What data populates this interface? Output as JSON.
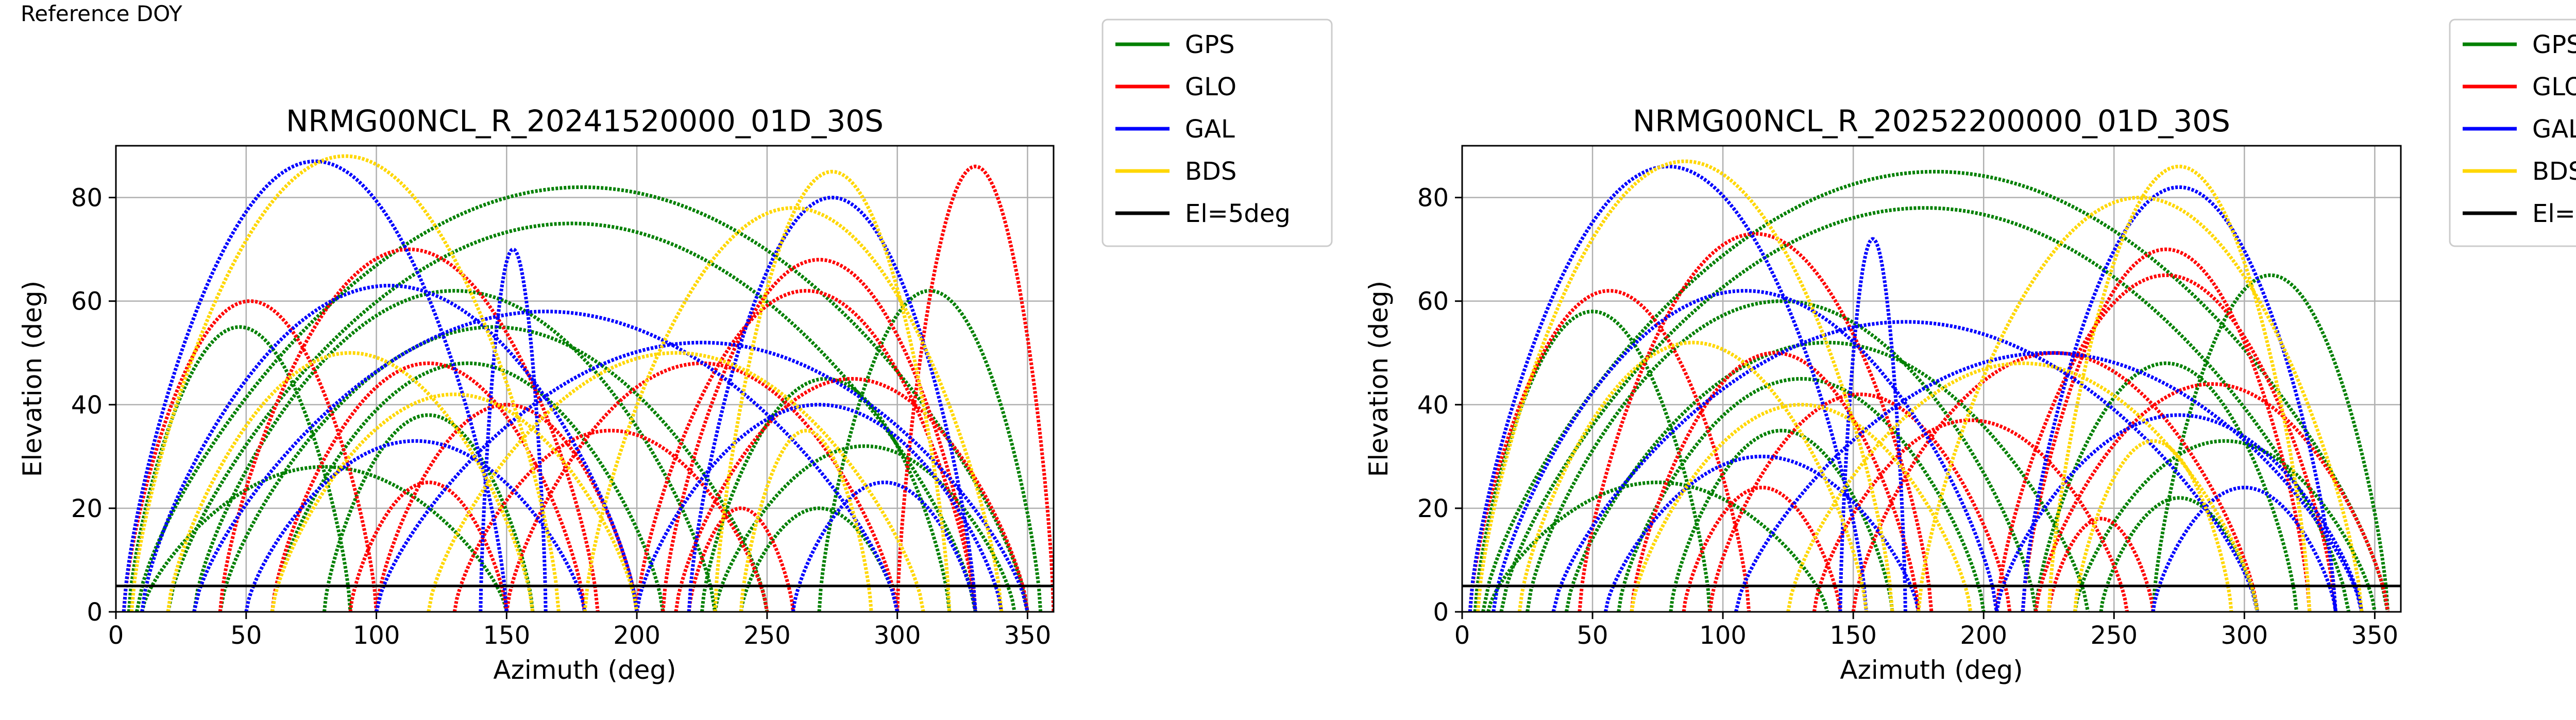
{
  "page_label": "Reference DOY",
  "colors": {
    "GPS": "#008000",
    "GLO": "#ff0000",
    "GAL": "#0000ff",
    "BDS": "#ffd700",
    "El=5deg": "#000000",
    "grid": "#b0b0b0"
  },
  "legend_entries": [
    "GPS",
    "GLO",
    "GAL",
    "BDS",
    "El=5deg"
  ],
  "chart_data": [
    {
      "type": "scatter",
      "title": "NRMG00NCL_R_20241520000_01D_30S",
      "xlabel": "Azimuth (deg)",
      "ylabel": "Elevation (deg)",
      "xlim": [
        0,
        360
      ],
      "ylim": [
        0,
        90
      ],
      "xticks": [
        0,
        50,
        100,
        150,
        200,
        250,
        300,
        350
      ],
      "yticks": [
        0,
        20,
        40,
        60,
        80
      ],
      "grid": true,
      "legend_placement": "outside right, top",
      "reference_line": {
        "name": "El=5deg",
        "y": 5
      },
      "series": [
        {
          "name": "GPS",
          "arcs": [
            [
              8,
              350,
              82
            ],
            [
              20,
              330,
              75
            ],
            [
              30,
              230,
              62
            ],
            [
              40,
              250,
              55
            ],
            [
              60,
              210,
              48
            ],
            [
              80,
              160,
              38
            ],
            [
              225,
              320,
              45
            ],
            [
              230,
              345,
              32
            ],
            [
              10,
              150,
              28
            ],
            [
              240,
              300,
              20
            ],
            [
              5,
              90,
              55
            ],
            [
              270,
              355,
              62
            ]
          ]
        },
        {
          "name": "GLO",
          "arcs": [
            [
              3,
              100,
              60
            ],
            [
              40,
              185,
              70
            ],
            [
              60,
              180,
              48
            ],
            [
              100,
              200,
              40
            ],
            [
              130,
              250,
              35
            ],
            [
              150,
              300,
              48
            ],
            [
              200,
              330,
              62
            ],
            [
              210,
              330,
              68
            ],
            [
              215,
              350,
              45
            ],
            [
              90,
              150,
              25
            ],
            [
              220,
              260,
              20
            ],
            [
              300,
              360,
              86
            ]
          ]
        },
        {
          "name": "GAL",
          "arcs": [
            [
              3,
              150,
              87
            ],
            [
              10,
              200,
              63
            ],
            [
              30,
              300,
              58
            ],
            [
              100,
              350,
              52
            ],
            [
              200,
              340,
              40
            ],
            [
              220,
              330,
              80
            ],
            [
              50,
              180,
              33
            ],
            [
              260,
              330,
              25
            ],
            [
              140,
              165,
              70
            ]
          ]
        },
        {
          "name": "BDS",
          "arcs": [
            [
              6,
              170,
              88
            ],
            [
              20,
              160,
              50
            ],
            [
              60,
              200,
              42
            ],
            [
              180,
              340,
              78
            ],
            [
              230,
              320,
              85
            ],
            [
              120,
              310,
              50
            ],
            [
              240,
              290,
              35
            ]
          ]
        }
      ]
    },
    {
      "type": "scatter",
      "title": "NRMG00NCL_R_20252200000_01D_30S",
      "xlabel": "Azimuth (deg)",
      "ylabel": "Elevation (deg)",
      "xlim": [
        0,
        360
      ],
      "ylim": [
        0,
        90
      ],
      "xticks": [
        0,
        50,
        100,
        150,
        200,
        250,
        300,
        350
      ],
      "yticks": [
        0,
        20,
        40,
        60,
        80
      ],
      "grid": true,
      "legend_placement": "outside right, top",
      "reference_line": {
        "name": "El=5deg",
        "y": 5
      },
      "series": [
        {
          "name": "GPS",
          "arcs": [
            [
              8,
              355,
              85
            ],
            [
              15,
              340,
              78
            ],
            [
              25,
              220,
              60
            ],
            [
              40,
              240,
              52
            ],
            [
              60,
              200,
              45
            ],
            [
              80,
              165,
              35
            ],
            [
              220,
              320,
              48
            ],
            [
              235,
              350,
              33
            ],
            [
              10,
              140,
              25
            ],
            [
              245,
              305,
              22
            ],
            [
              5,
              95,
              58
            ],
            [
              265,
              355,
              65
            ]
          ]
        },
        {
          "name": "GLO",
          "arcs": [
            [
              3,
              110,
              62
            ],
            [
              45,
              180,
              73
            ],
            [
              65,
              175,
              50
            ],
            [
              95,
              210,
              42
            ],
            [
              135,
              255,
              37
            ],
            [
              150,
              305,
              50
            ],
            [
              205,
              335,
              65
            ],
            [
              215,
              325,
              70
            ],
            [
              220,
              355,
              44
            ],
            [
              85,
              145,
              24
            ],
            [
              225,
              265,
              18
            ]
          ]
        },
        {
          "name": "GAL",
          "arcs": [
            [
              3,
              155,
              86
            ],
            [
              12,
              205,
              62
            ],
            [
              35,
              305,
              56
            ],
            [
              105,
              345,
              50
            ],
            [
              205,
              345,
              38
            ],
            [
              215,
              335,
              82
            ],
            [
              55,
              175,
              30
            ],
            [
              265,
              335,
              24
            ],
            [
              145,
              170,
              72
            ]
          ]
        },
        {
          "name": "BDS",
          "arcs": [
            [
              6,
              165,
              87
            ],
            [
              22,
              155,
              52
            ],
            [
              65,
              195,
              40
            ],
            [
              175,
              345,
              80
            ],
            [
              225,
              325,
              86
            ],
            [
              125,
              305,
              48
            ],
            [
              235,
              295,
              33
            ]
          ]
        }
      ]
    }
  ]
}
